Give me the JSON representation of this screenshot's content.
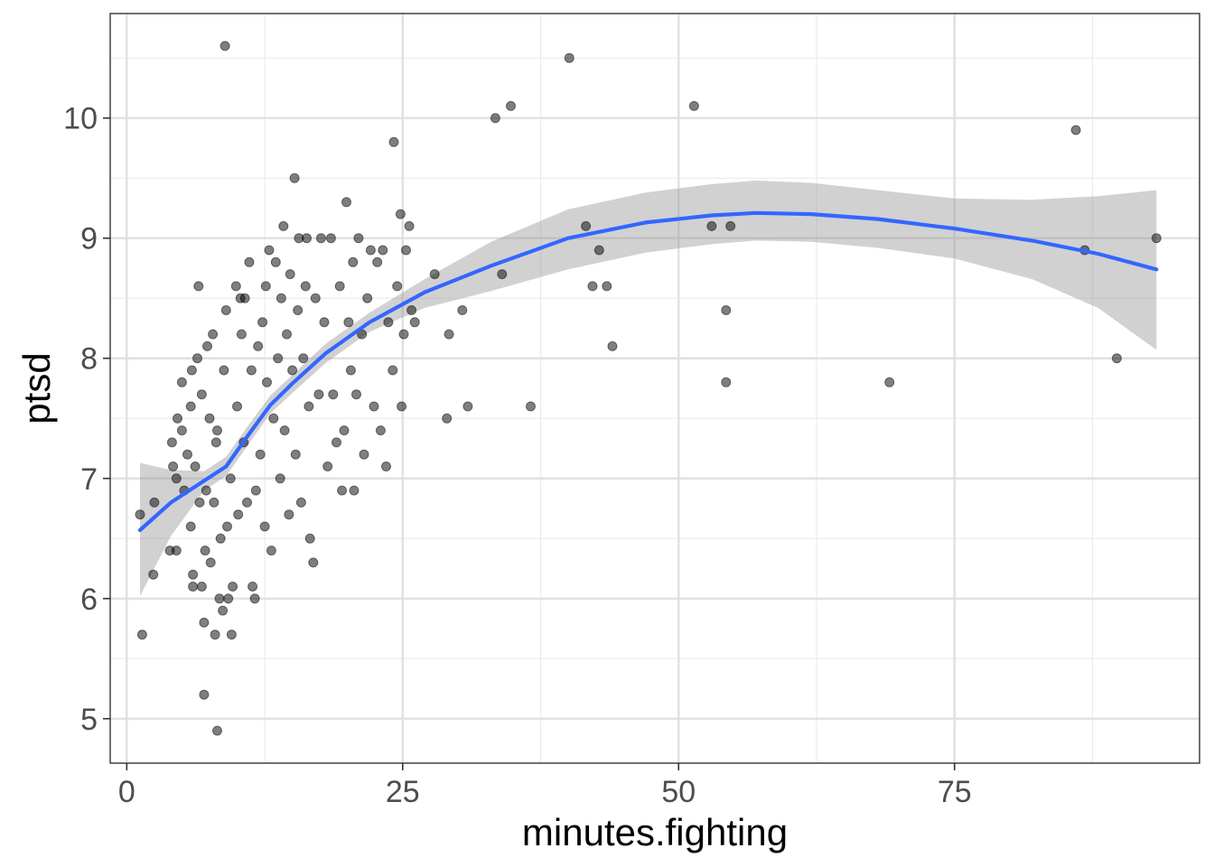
{
  "chart_data": {
    "type": "scatter",
    "title": "",
    "xlabel": "minutes.fighting",
    "ylabel": "ptsd",
    "xlim": [
      -1.5,
      97.2
    ],
    "ylim": [
      4.63,
      10.87
    ],
    "x_ticks": [
      0,
      25,
      50,
      75
    ],
    "x_tick_labels": [
      "0",
      "25",
      "50",
      "75"
    ],
    "x_minor_ticks": [
      12.5,
      37.5,
      62.5,
      87.5
    ],
    "y_ticks": [
      5,
      6,
      7,
      8,
      9,
      10
    ],
    "y_tick_labels": [
      "5",
      "6",
      "7",
      "8",
      "9",
      "10"
    ],
    "y_minor_ticks": [
      5.5,
      6.5,
      7.5,
      8.5,
      9.5,
      10.5
    ],
    "grid": true,
    "legend": "none",
    "point_color": "#000000",
    "point_opacity": 0.5,
    "smooth_color": "#3366FF",
    "ribbon_color": "#999999",
    "ribbon_opacity": 0.45,
    "points": [
      [
        1.2,
        6.7
      ],
      [
        2.5,
        6.8
      ],
      [
        1.4,
        5.7
      ],
      [
        2.4,
        6.2
      ],
      [
        3.9,
        6.4
      ],
      [
        4.1,
        7.3
      ],
      [
        4.2,
        7.1
      ],
      [
        4.5,
        6.4
      ],
      [
        4.5,
        7.0
      ],
      [
        4.6,
        7.5
      ],
      [
        5.0,
        7.8
      ],
      [
        5.0,
        7.4
      ],
      [
        5.2,
        6.9
      ],
      [
        5.5,
        7.2
      ],
      [
        5.8,
        6.6
      ],
      [
        5.8,
        7.6
      ],
      [
        5.9,
        7.9
      ],
      [
        6.0,
        6.2
      ],
      [
        6.0,
        6.1
      ],
      [
        6.2,
        7.1
      ],
      [
        6.4,
        8.0
      ],
      [
        6.5,
        8.6
      ],
      [
        6.6,
        6.8
      ],
      [
        6.8,
        6.1
      ],
      [
        6.8,
        7.7
      ],
      [
        7.0,
        5.8
      ],
      [
        7.0,
        5.2
      ],
      [
        7.1,
        6.4
      ],
      [
        7.2,
        6.9
      ],
      [
        7.3,
        8.1
      ],
      [
        7.5,
        7.5
      ],
      [
        7.6,
        6.3
      ],
      [
        7.8,
        8.2
      ],
      [
        7.9,
        6.8
      ],
      [
        8.0,
        5.7
      ],
      [
        8.1,
        7.3
      ],
      [
        8.2,
        4.9
      ],
      [
        8.2,
        7.4
      ],
      [
        8.4,
        6.0
      ],
      [
        8.5,
        6.5
      ],
      [
        8.7,
        5.9
      ],
      [
        8.8,
        7.9
      ],
      [
        8.9,
        10.6
      ],
      [
        9.0,
        8.4
      ],
      [
        9.1,
        6.6
      ],
      [
        9.2,
        6.0
      ],
      [
        9.4,
        7.0
      ],
      [
        9.5,
        5.7
      ],
      [
        9.6,
        6.1
      ],
      [
        9.9,
        8.6
      ],
      [
        10.0,
        7.6
      ],
      [
        10.1,
        6.7
      ],
      [
        10.3,
        8.5
      ],
      [
        10.4,
        8.2
      ],
      [
        10.6,
        7.3
      ],
      [
        10.7,
        8.5
      ],
      [
        10.9,
        6.8
      ],
      [
        11.1,
        8.8
      ],
      [
        11.3,
        7.9
      ],
      [
        11.4,
        6.1
      ],
      [
        11.6,
        6.0
      ],
      [
        11.7,
        6.9
      ],
      [
        11.9,
        8.1
      ],
      [
        12.1,
        7.2
      ],
      [
        12.3,
        8.3
      ],
      [
        12.5,
        6.6
      ],
      [
        12.6,
        8.6
      ],
      [
        12.7,
        7.8
      ],
      [
        12.9,
        8.9
      ],
      [
        13.1,
        6.4
      ],
      [
        13.3,
        7.5
      ],
      [
        13.5,
        8.8
      ],
      [
        13.7,
        8.0
      ],
      [
        13.9,
        7.0
      ],
      [
        14.0,
        8.5
      ],
      [
        14.2,
        9.1
      ],
      [
        14.3,
        7.4
      ],
      [
        14.5,
        8.2
      ],
      [
        14.7,
        6.7
      ],
      [
        14.8,
        8.7
      ],
      [
        15.0,
        7.9
      ],
      [
        15.2,
        9.5
      ],
      [
        15.3,
        7.2
      ],
      [
        15.5,
        8.4
      ],
      [
        15.6,
        9.0
      ],
      [
        15.8,
        6.8
      ],
      [
        16.0,
        8.0
      ],
      [
        16.2,
        8.6
      ],
      [
        16.3,
        9.0
      ],
      [
        16.5,
        7.6
      ],
      [
        16.6,
        6.5
      ],
      [
        16.9,
        6.3
      ],
      [
        17.1,
        8.5
      ],
      [
        17.4,
        7.7
      ],
      [
        17.6,
        9.0
      ],
      [
        17.9,
        8.3
      ],
      [
        18.2,
        7.1
      ],
      [
        18.5,
        9.0
      ],
      [
        18.7,
        7.7
      ],
      [
        19.0,
        7.3
      ],
      [
        19.3,
        8.6
      ],
      [
        19.5,
        6.9
      ],
      [
        19.7,
        7.4
      ],
      [
        19.9,
        9.3
      ],
      [
        20.1,
        8.3
      ],
      [
        20.3,
        7.9
      ],
      [
        20.5,
        8.8
      ],
      [
        20.6,
        6.9
      ],
      [
        20.8,
        7.7
      ],
      [
        21.0,
        9.0
      ],
      [
        21.3,
        8.2
      ],
      [
        21.5,
        7.2
      ],
      [
        21.8,
        8.5
      ],
      [
        22.1,
        8.9
      ],
      [
        22.4,
        7.6
      ],
      [
        22.7,
        8.8
      ],
      [
        23.0,
        7.4
      ],
      [
        23.2,
        8.9
      ],
      [
        23.5,
        7.1
      ],
      [
        23.7,
        8.3
      ],
      [
        24.1,
        7.9
      ],
      [
        24.2,
        9.8
      ],
      [
        24.5,
        8.6
      ],
      [
        24.8,
        9.2
      ],
      [
        24.9,
        7.6
      ],
      [
        25.1,
        8.2
      ],
      [
        25.3,
        8.9
      ],
      [
        25.6,
        9.1
      ],
      [
        25.8,
        8.4
      ],
      [
        26.1,
        8.3
      ],
      [
        27.9,
        8.7
      ],
      [
        29.2,
        8.2
      ],
      [
        29.0,
        7.5
      ],
      [
        30.4,
        8.4
      ],
      [
        30.9,
        7.6
      ],
      [
        33.4,
        10.0
      ],
      [
        34.0,
        8.7
      ],
      [
        34.8,
        10.1
      ],
      [
        36.6,
        7.6
      ],
      [
        40.1,
        10.5
      ],
      [
        41.6,
        9.1
      ],
      [
        42.2,
        8.6
      ],
      [
        42.8,
        8.9
      ],
      [
        43.5,
        8.6
      ],
      [
        44.0,
        8.1
      ],
      [
        51.4,
        10.1
      ],
      [
        53.0,
        9.1
      ],
      [
        54.3,
        8.4
      ],
      [
        54.3,
        7.8
      ],
      [
        54.7,
        9.1
      ],
      [
        69.1,
        7.8
      ],
      [
        86.0,
        9.9
      ],
      [
        86.8,
        8.9
      ],
      [
        89.7,
        8.0
      ],
      [
        93.3,
        9.0
      ]
    ],
    "smooth": {
      "x": [
        1.2,
        4,
        7,
        9,
        11,
        13,
        15,
        18,
        22,
        27,
        33,
        40,
        47,
        53,
        57,
        62,
        68,
        75,
        82,
        88,
        93.3
      ],
      "fit": [
        6.57,
        6.8,
        6.98,
        7.1,
        7.36,
        7.61,
        7.79,
        8.04,
        8.3,
        8.55,
        8.77,
        9.0,
        9.13,
        9.19,
        9.21,
        9.2,
        9.16,
        9.08,
        8.98,
        8.87,
        8.74
      ],
      "lower": [
        6.02,
        6.52,
        6.9,
        7.02,
        7.28,
        7.54,
        7.71,
        7.96,
        8.22,
        8.42,
        8.56,
        8.74,
        8.88,
        8.95,
        8.98,
        8.97,
        8.92,
        8.83,
        8.66,
        8.42,
        8.07
      ],
      "upper": [
        7.13,
        7.07,
        7.06,
        7.18,
        7.44,
        7.69,
        7.86,
        8.12,
        8.38,
        8.66,
        8.97,
        9.24,
        9.38,
        9.45,
        9.48,
        9.46,
        9.4,
        9.33,
        9.32,
        9.35,
        9.4
      ]
    }
  }
}
